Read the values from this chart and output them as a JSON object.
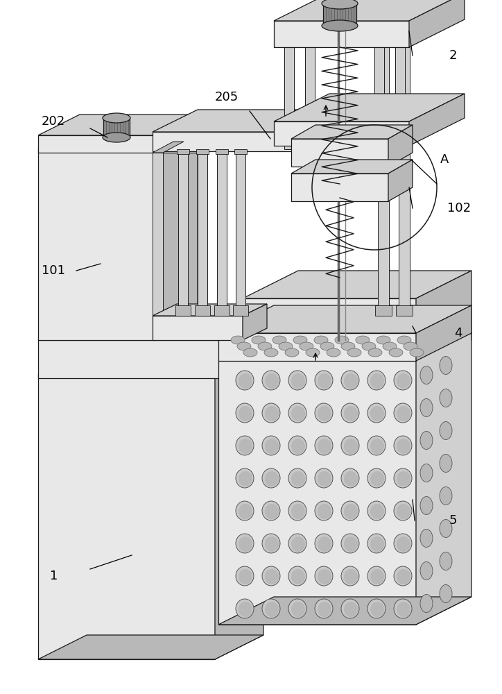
{
  "bg_color": "#ffffff",
  "lc": "#1a1a1a",
  "lw": 0.9,
  "face_light": "#ececec",
  "face_mid": "#d8d8d8",
  "face_dark": "#c0c0c0",
  "face_darker": "#aaaaaa"
}
